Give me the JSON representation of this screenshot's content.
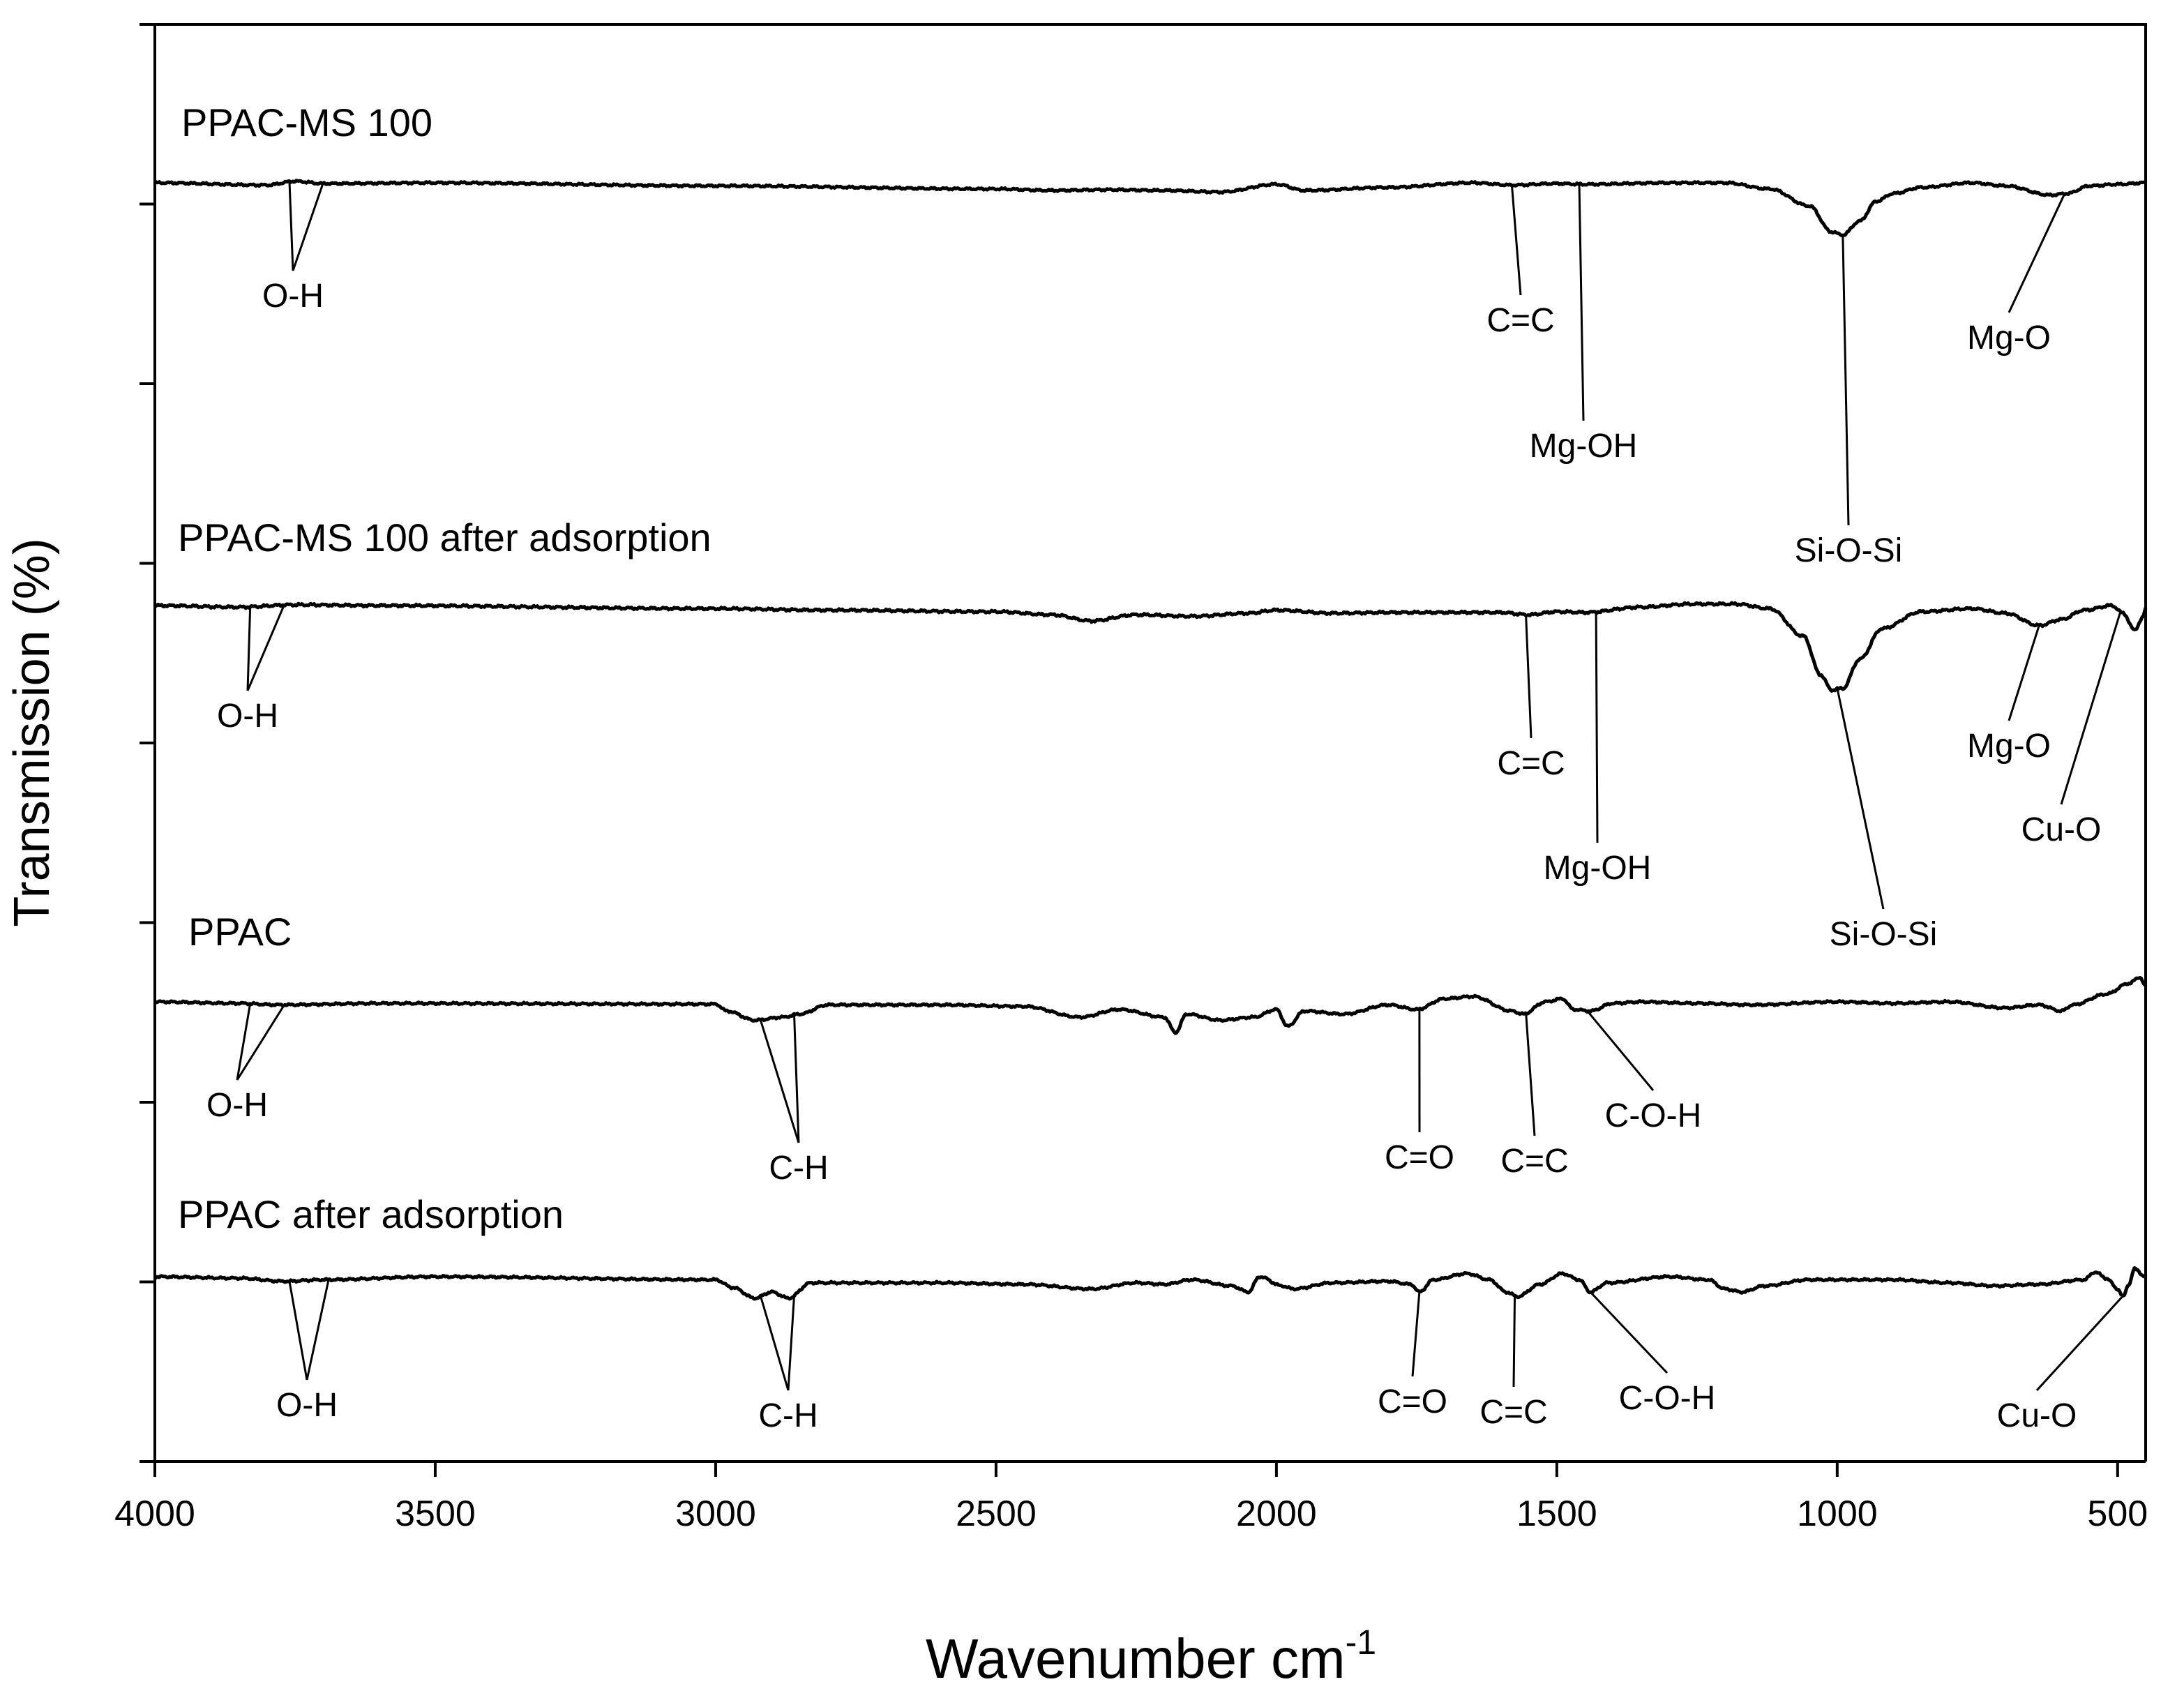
{
  "chart_data": {
    "type": "line",
    "title": "",
    "xlabel": "Wavenumber cm",
    "xlabel_superscript": "-1",
    "ylabel": "Transmission (%)",
    "xlim": [
      4000,
      450
    ],
    "x_ticks": [
      4000,
      3500,
      3000,
      2500,
      2000,
      1500,
      1000,
      500
    ],
    "y_tick_count": 8,
    "grid": false,
    "legend": "none",
    "series": [
      {
        "name": "PPAC-MS 100",
        "label": "PPAC-MS 100",
        "baseline": 50,
        "noise": 0.3,
        "points": [
          [
            4000,
            50
          ],
          [
            3800,
            51.5
          ],
          [
            3750,
            49
          ],
          [
            3700,
            50.5
          ],
          [
            3500,
            50
          ],
          [
            3000,
            52
          ],
          [
            2500,
            54
          ],
          [
            2400,
            55
          ],
          [
            2300,
            54.5
          ],
          [
            2200,
            55
          ],
          [
            2100,
            56
          ],
          [
            2000,
            51
          ],
          [
            1950,
            55
          ],
          [
            1800,
            53
          ],
          [
            1650,
            50
          ],
          [
            1580,
            51.5
          ],
          [
            1500,
            50.5
          ],
          [
            1450,
            51
          ],
          [
            1300,
            50
          ],
          [
            1200,
            50
          ],
          [
            1120,
            54
          ],
          [
            1050,
            65
          ],
          [
            1010,
            82
          ],
          [
            990,
            84
          ],
          [
            960,
            75
          ],
          [
            930,
            62
          ],
          [
            900,
            57
          ],
          [
            850,
            53
          ],
          [
            760,
            50
          ],
          [
            700,
            52
          ],
          [
            620,
            58
          ],
          [
            590,
            57
          ],
          [
            550,
            52
          ],
          [
            500,
            51
          ],
          [
            450,
            50
          ]
        ],
        "bands": [
          {
            "label": "O-H",
            "peaks": [
              3760,
              3700
            ]
          },
          {
            "label": "C=C",
            "peaks": [
              1580
            ]
          },
          {
            "label": "Mg-OH",
            "peaks": [
              1460
            ]
          },
          {
            "label": "Si-O-Si",
            "peaks": [
              990
            ]
          },
          {
            "label": "Mg-O",
            "peaks": [
              595
            ]
          }
        ]
      },
      {
        "name": "PPAC-MS 100 after adsorption",
        "label": "PPAC-MS 100 after adsorption",
        "baseline": 50,
        "noise": 0.35,
        "points": [
          [
            4000,
            50
          ],
          [
            3850,
            51
          ],
          [
            3750,
            49.5
          ],
          [
            3600,
            50
          ],
          [
            3000,
            52
          ],
          [
            2800,
            53
          ],
          [
            2500,
            54
          ],
          [
            2400,
            56
          ],
          [
            2330,
            60
          ],
          [
            2250,
            56
          ],
          [
            2150,
            57
          ],
          [
            2050,
            55
          ],
          [
            2000,
            53
          ],
          [
            1900,
            55
          ],
          [
            1800,
            54.5
          ],
          [
            1600,
            54.5
          ],
          [
            1550,
            56
          ],
          [
            1500,
            54
          ],
          [
            1450,
            54.5
          ],
          [
            1350,
            51
          ],
          [
            1260,
            49
          ],
          [
            1180,
            49
          ],
          [
            1120,
            52
          ],
          [
            1060,
            70
          ],
          [
            1030,
            95
          ],
          [
            1010,
            105
          ],
          [
            990,
            104
          ],
          [
            960,
            85
          ],
          [
            920,
            65
          ],
          [
            850,
            54
          ],
          [
            760,
            52
          ],
          [
            700,
            55
          ],
          [
            640,
            63
          ],
          [
            600,
            59
          ],
          [
            560,
            53
          ],
          [
            510,
            50
          ],
          [
            490,
            55
          ],
          [
            470,
            66
          ],
          [
            455,
            58
          ],
          [
            450,
            52
          ]
        ],
        "bands": [
          {
            "label": "O-H",
            "peaks": [
              3830,
              3770
            ]
          },
          {
            "label": "C=C",
            "peaks": [
              1555
            ]
          },
          {
            "label": "Mg-OH",
            "peaks": [
              1430
            ]
          },
          {
            "label": "Si-O-Si",
            "peaks": [
              1000
            ]
          },
          {
            "label": "Mg-O",
            "peaks": [
              640
            ]
          },
          {
            "label": "Cu-O",
            "peaks": [
              495
            ]
          }
        ]
      },
      {
        "name": "PPAC",
        "label": "PPAC",
        "baseline": 50,
        "noise": 0.3,
        "points": [
          [
            4000,
            50
          ],
          [
            3850,
            51
          ],
          [
            3780,
            52
          ],
          [
            3600,
            51
          ],
          [
            3000,
            51.5
          ],
          [
            2980,
            56
          ],
          [
            2930,
            62
          ],
          [
            2880,
            60
          ],
          [
            2850,
            58
          ],
          [
            2800,
            52
          ],
          [
            2600,
            52
          ],
          [
            2450,
            53
          ],
          [
            2350,
            60
          ],
          [
            2280,
            55
          ],
          [
            2200,
            60
          ],
          [
            2180,
            70
          ],
          [
            2160,
            58
          ],
          [
            2100,
            62
          ],
          [
            2040,
            60
          ],
          [
            2000,
            55
          ],
          [
            1980,
            66
          ],
          [
            1950,
            56
          ],
          [
            1880,
            58
          ],
          [
            1800,
            52
          ],
          [
            1750,
            55
          ],
          [
            1700,
            48
          ],
          [
            1650,
            46.5
          ],
          [
            1580,
            56
          ],
          [
            1560,
            58
          ],
          [
            1520,
            50
          ],
          [
            1490,
            48
          ],
          [
            1470,
            55
          ],
          [
            1440,
            56
          ],
          [
            1400,
            51
          ],
          [
            1350,
            50
          ],
          [
            1250,
            51
          ],
          [
            1150,
            52
          ],
          [
            1000,
            50
          ],
          [
            900,
            51
          ],
          [
            800,
            50
          ],
          [
            700,
            54
          ],
          [
            640,
            52
          ],
          [
            600,
            56
          ],
          [
            580,
            52
          ],
          [
            520,
            45
          ],
          [
            480,
            38
          ],
          [
            460,
            34
          ],
          [
            450,
            40
          ]
        ],
        "bands": [
          {
            "label": "O-H",
            "peaks": [
              3830,
              3770
            ]
          },
          {
            "label": "C-H",
            "peaks": [
              2920,
              2860
            ]
          },
          {
            "label": "C=O",
            "peaks": [
              1745
            ]
          },
          {
            "label": "C=C",
            "peaks": [
              1555
            ]
          },
          {
            "label": "C-O-H",
            "peaks": [
              1445
            ]
          }
        ]
      },
      {
        "name": "PPAC after adsorption",
        "label": "PPAC after adsorption",
        "baseline": 50,
        "noise": 0.3,
        "points": [
          [
            4000,
            50
          ],
          [
            3850,
            51
          ],
          [
            3770,
            53
          ],
          [
            3700,
            52
          ],
          [
            3500,
            50
          ],
          [
            3000,
            52
          ],
          [
            2970,
            57
          ],
          [
            2930,
            64
          ],
          [
            2900,
            60
          ],
          [
            2870,
            64
          ],
          [
            2830,
            54
          ],
          [
            2600,
            54
          ],
          [
            2450,
            55
          ],
          [
            2330,
            58
          ],
          [
            2250,
            54
          ],
          [
            2200,
            55
          ],
          [
            2150,
            52
          ],
          [
            2080,
            56
          ],
          [
            2050,
            60
          ],
          [
            2030,
            50
          ],
          [
            1990,
            56
          ],
          [
            1970,
            58
          ],
          [
            1900,
            54
          ],
          [
            1800,
            53
          ],
          [
            1760,
            55
          ],
          [
            1745,
            60
          ],
          [
            1720,
            52
          ],
          [
            1660,
            48
          ],
          [
            1620,
            52
          ],
          [
            1590,
            60
          ],
          [
            1570,
            63
          ],
          [
            1530,
            55
          ],
          [
            1490,
            48
          ],
          [
            1460,
            52
          ],
          [
            1440,
            60
          ],
          [
            1410,
            54
          ],
          [
            1300,
            50
          ],
          [
            1230,
            52
          ],
          [
            1200,
            58
          ],
          [
            1170,
            60
          ],
          [
            1130,
            56
          ],
          [
            1050,
            52
          ],
          [
            900,
            52
          ],
          [
            800,
            54
          ],
          [
            720,
            56
          ],
          [
            640,
            55
          ],
          [
            560,
            52
          ],
          [
            540,
            47
          ],
          [
            520,
            51
          ],
          [
            500,
            58
          ],
          [
            490,
            63
          ],
          [
            480,
            55
          ],
          [
            470,
            45
          ],
          [
            450,
            50
          ]
        ],
        "bands": [
          {
            "label": "O-H",
            "peaks": [
              3760,
              3690
            ]
          },
          {
            "label": "C-H",
            "peaks": [
              2920,
              2860
            ]
          },
          {
            "label": "C=O",
            "peaks": [
              1745
            ]
          },
          {
            "label": "C=C",
            "peaks": [
              1575
            ]
          },
          {
            "label": "C-O-H",
            "peaks": [
              1440
            ]
          },
          {
            "label": "Cu-O",
            "peaks": [
              490
            ]
          }
        ]
      }
    ]
  }
}
